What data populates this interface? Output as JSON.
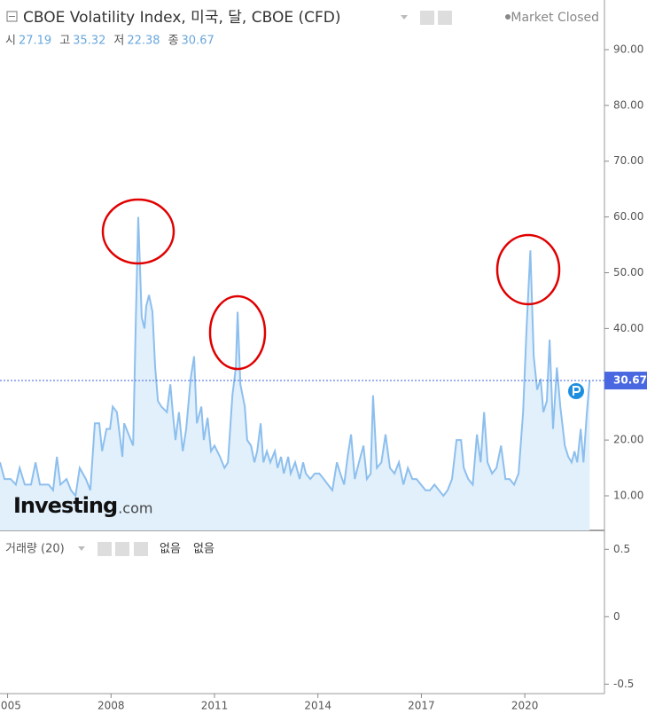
{
  "header": {
    "title": "CBOE Volatility Index, 미국, 달, CBOE (CFD)",
    "status": "Market Closed",
    "ohlc": [
      {
        "label": "시",
        "value": 27.19
      },
      {
        "label": "고",
        "value": 35.32
      },
      {
        "label": "저",
        "value": 22.38
      },
      {
        "label": "종",
        "value": 30.67
      }
    ]
  },
  "logo": {
    "brand": "Investing",
    "suffix": ".com"
  },
  "chart_data": {
    "type": "area",
    "color": "#8dbfee",
    "x": [
      2004.78,
      2004.91,
      2005.09,
      2005.24,
      2005.35,
      2005.5,
      2005.68,
      2005.81,
      2005.94,
      2006.19,
      2006.32,
      2006.43,
      2006.53,
      2006.71,
      2006.84,
      2006.97,
      2007.09,
      2007.27,
      2007.4,
      2007.53,
      2007.66,
      2007.74,
      2007.87,
      2007.97,
      2008.05,
      2008.17,
      2008.25,
      2008.33,
      2008.38,
      2008.51,
      2008.64,
      2008.72,
      2008.79,
      2008.89,
      2008.97,
      2009.02,
      2009.1,
      2009.2,
      2009.28,
      2009.36,
      2009.46,
      2009.62,
      2009.72,
      2009.79,
      2009.87,
      2009.97,
      2010.08,
      2010.18,
      2010.31,
      2010.41,
      2010.49,
      2010.62,
      2010.69,
      2010.8,
      2010.9,
      2011.0,
      2011.16,
      2011.29,
      2011.39,
      2011.52,
      2011.62,
      2011.67,
      2011.75,
      2011.88,
      2011.95,
      2012.06,
      2012.16,
      2012.24,
      2012.34,
      2012.42,
      2012.52,
      2012.62,
      2012.75,
      2012.83,
      2012.93,
      2013.01,
      2013.14,
      2013.21,
      2013.34,
      2013.47,
      2013.57,
      2013.65,
      2013.78,
      2013.91,
      2014.04,
      2014.17,
      2014.29,
      2014.42,
      2014.55,
      2014.65,
      2014.76,
      2014.86,
      2014.96,
      2015.07,
      2015.19,
      2015.32,
      2015.42,
      2015.53,
      2015.6,
      2015.71,
      2015.84,
      2015.96,
      2016.09,
      2016.22,
      2016.35,
      2016.48,
      2016.61,
      2016.74,
      2016.86,
      2016.99,
      2017.12,
      2017.25,
      2017.38,
      2017.51,
      2017.64,
      2017.76,
      2017.89,
      2018.02,
      2018.15,
      2018.23,
      2018.36,
      2018.49,
      2018.61,
      2018.72,
      2018.82,
      2018.92,
      2019.05,
      2019.18,
      2019.31,
      2019.44,
      2019.56,
      2019.69,
      2019.82,
      2019.95,
      2020.05,
      2020.16,
      2020.26,
      2020.36,
      2020.46,
      2020.54,
      2020.64,
      2020.72,
      2020.82,
      2020.93,
      2021.03,
      2021.16,
      2021.26,
      2021.36,
      2021.44,
      2021.52,
      2021.62,
      2021.7,
      2021.8,
      2021.88
    ],
    "values": [
      16,
      13,
      13,
      12,
      15,
      12,
      12,
      16,
      12,
      12,
      11,
      17,
      12,
      13,
      11,
      10,
      15,
      13,
      11,
      23,
      23,
      18,
      22,
      22,
      26,
      25,
      21,
      17,
      23,
      21,
      19,
      42,
      60,
      42,
      40,
      44,
      46,
      43,
      33,
      27,
      26,
      25,
      30,
      25,
      20,
      25,
      18,
      22,
      31,
      35,
      23,
      26,
      20,
      24,
      18,
      19,
      17,
      15,
      16,
      28,
      33,
      43,
      30,
      26,
      20,
      19,
      16,
      18,
      23,
      16,
      18,
      16,
      18,
      15,
      17,
      14,
      17,
      14,
      16,
      13,
      16,
      14,
      13,
      14,
      14,
      13,
      12,
      11,
      16,
      14,
      12,
      17,
      21,
      13,
      16,
      19,
      13,
      14,
      28,
      15,
      16,
      21,
      15,
      14,
      16,
      12,
      15,
      13,
      13,
      12,
      11,
      11,
      12,
      11,
      10,
      11,
      13,
      20,
      20,
      15,
      13,
      12,
      21,
      16,
      25,
      16,
      14,
      15,
      19,
      13,
      13,
      12,
      14,
      25,
      40,
      54,
      35,
      29,
      31,
      25,
      27,
      38,
      22,
      33,
      26,
      19,
      17,
      16,
      18,
      16,
      22,
      16,
      25,
      30.67
    ],
    "xlim": [
      2004.78,
      2022.31
    ],
    "xticks": [
      2005,
      2008,
      2011,
      2014,
      2017,
      2020
    ],
    "ylim": [
      3.8,
      98.9
    ],
    "yticks": [
      {
        "value": 10,
        "label": "10.00"
      },
      {
        "value": 20,
        "label": "20.00"
      },
      {
        "value": 30,
        "label": "30.00"
      },
      {
        "value": 40,
        "label": "40.00"
      },
      {
        "value": 50,
        "label": "50.00"
      },
      {
        "value": 60,
        "label": "60.00"
      },
      {
        "value": 70,
        "label": "70.00"
      },
      {
        "value": 80,
        "label": "80.00"
      },
      {
        "value": 90,
        "label": "90.00"
      }
    ],
    "last_price": 30.67
  },
  "volume_pane": {
    "title": "거래량 (20)",
    "study_values": [
      "없음",
      "없음"
    ],
    "ylim": [
      -0.57,
      0.64
    ],
    "yticks": [
      0.5,
      0,
      -0.5
    ]
  }
}
